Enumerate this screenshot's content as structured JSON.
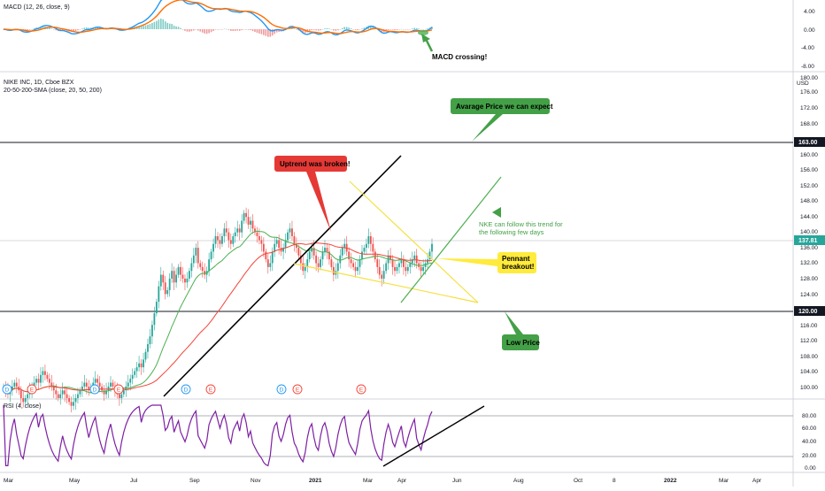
{
  "symbol": {
    "title": "NIKE INC, 1D, Cboe BZX",
    "sma_label": "20-50-200-SMA (close, 20, 50, 200)",
    "currency": "USD"
  },
  "macd": {
    "label": "MACD (12, 26, close, 9)",
    "axis_ticks": [
      "4.00",
      "0.00",
      "-4.00",
      "-8.00"
    ],
    "annotation": "MACD crossing!"
  },
  "rsi": {
    "label": "RSI (4, close)",
    "axis_ticks": [
      "80.00",
      "60.00",
      "40.00",
      "20.00",
      "0.00"
    ]
  },
  "price_axis": {
    "ticks": [
      "180.00",
      "176.00",
      "172.00",
      "168.00",
      "160.00",
      "156.00",
      "152.00",
      "148.00",
      "144.00",
      "140.00",
      "136.00",
      "132.00",
      "128.00",
      "124.00",
      "116.00",
      "112.00",
      "108.00",
      "104.00",
      "100.00"
    ],
    "tag_163": "163.00",
    "tag_current": "137.81",
    "tag_120": "120.00"
  },
  "time_axis": [
    "Mar",
    "May",
    "Jul",
    "Sep",
    "Nov",
    "2021",
    "Mar",
    "Apr",
    "Jun",
    "Aug",
    "Oct",
    "8",
    "2022",
    "Mar",
    "Apr"
  ],
  "events": [
    "D",
    "E",
    "D",
    "E",
    "D",
    "E",
    "D",
    "E",
    "E"
  ],
  "annotations": {
    "average_price": "Avarage Price we can expect",
    "uptrend": "Uptrend was broken!",
    "nke_trend_line1": "NKE can follow this trend for",
    "nke_trend_line2": "the following few days",
    "pennant_line1": "Pennant",
    "pennant_line2": "breakout!",
    "low_price": "Low Price"
  },
  "colors": {
    "candle_up": "#26a69a",
    "candle_down": "#ef5350",
    "macd_line": "#2196f3",
    "signal_line": "#ff6d00",
    "sma20": "#4caf50",
    "sma50": "#f44336",
    "rsi": "#7e1fa3",
    "green_box": "#43a047",
    "red_box": "#e53935",
    "yellow_box": "#ffeb3b"
  },
  "chart_data": {
    "type": "candlestick",
    "ylim": [
      98,
      182
    ],
    "horizontal_levels": [
      163.0,
      137.81,
      120.0
    ],
    "closes": [
      101,
      100,
      99,
      100,
      101,
      102,
      101,
      100,
      98,
      97,
      98,
      99,
      100,
      101,
      102,
      103,
      102,
      104,
      105,
      104,
      103,
      102,
      101,
      100,
      99,
      98,
      99,
      100,
      99,
      98,
      97,
      96,
      97,
      98,
      99,
      100,
      101,
      102,
      101,
      100,
      101,
      102,
      103,
      102,
      101,
      100,
      99,
      100,
      101,
      102,
      101,
      100,
      99,
      98,
      99,
      100,
      101,
      102,
      103,
      104,
      105,
      106,
      107,
      106,
      108,
      110,
      112,
      114,
      117,
      120,
      123,
      127,
      130,
      128,
      125,
      126,
      129,
      131,
      128,
      130,
      132,
      130,
      129,
      128,
      129,
      131,
      133,
      135,
      137,
      133,
      132,
      131,
      130,
      131,
      134,
      136,
      138,
      140,
      139,
      138,
      140,
      142,
      141,
      139,
      138,
      140,
      141,
      142,
      141,
      144,
      146,
      145,
      143,
      144,
      142,
      141,
      140,
      139,
      138,
      136,
      134,
      132,
      133,
      136,
      138,
      139,
      137,
      136,
      137,
      139,
      141,
      142,
      140,
      138,
      137,
      135,
      133,
      131,
      132,
      134,
      136,
      137,
      135,
      133,
      132,
      134,
      136,
      137,
      136,
      134,
      132,
      130,
      131,
      133,
      135,
      137,
      138,
      136,
      134,
      133,
      132,
      131,
      132,
      134,
      136,
      137,
      138,
      140,
      138,
      136,
      134,
      132,
      130,
      129,
      131,
      133,
      135,
      134,
      132,
      131,
      132,
      133,
      134,
      132,
      131,
      132,
      133,
      134,
      135,
      133,
      132,
      131,
      132,
      133,
      134,
      136,
      138
    ]
  }
}
